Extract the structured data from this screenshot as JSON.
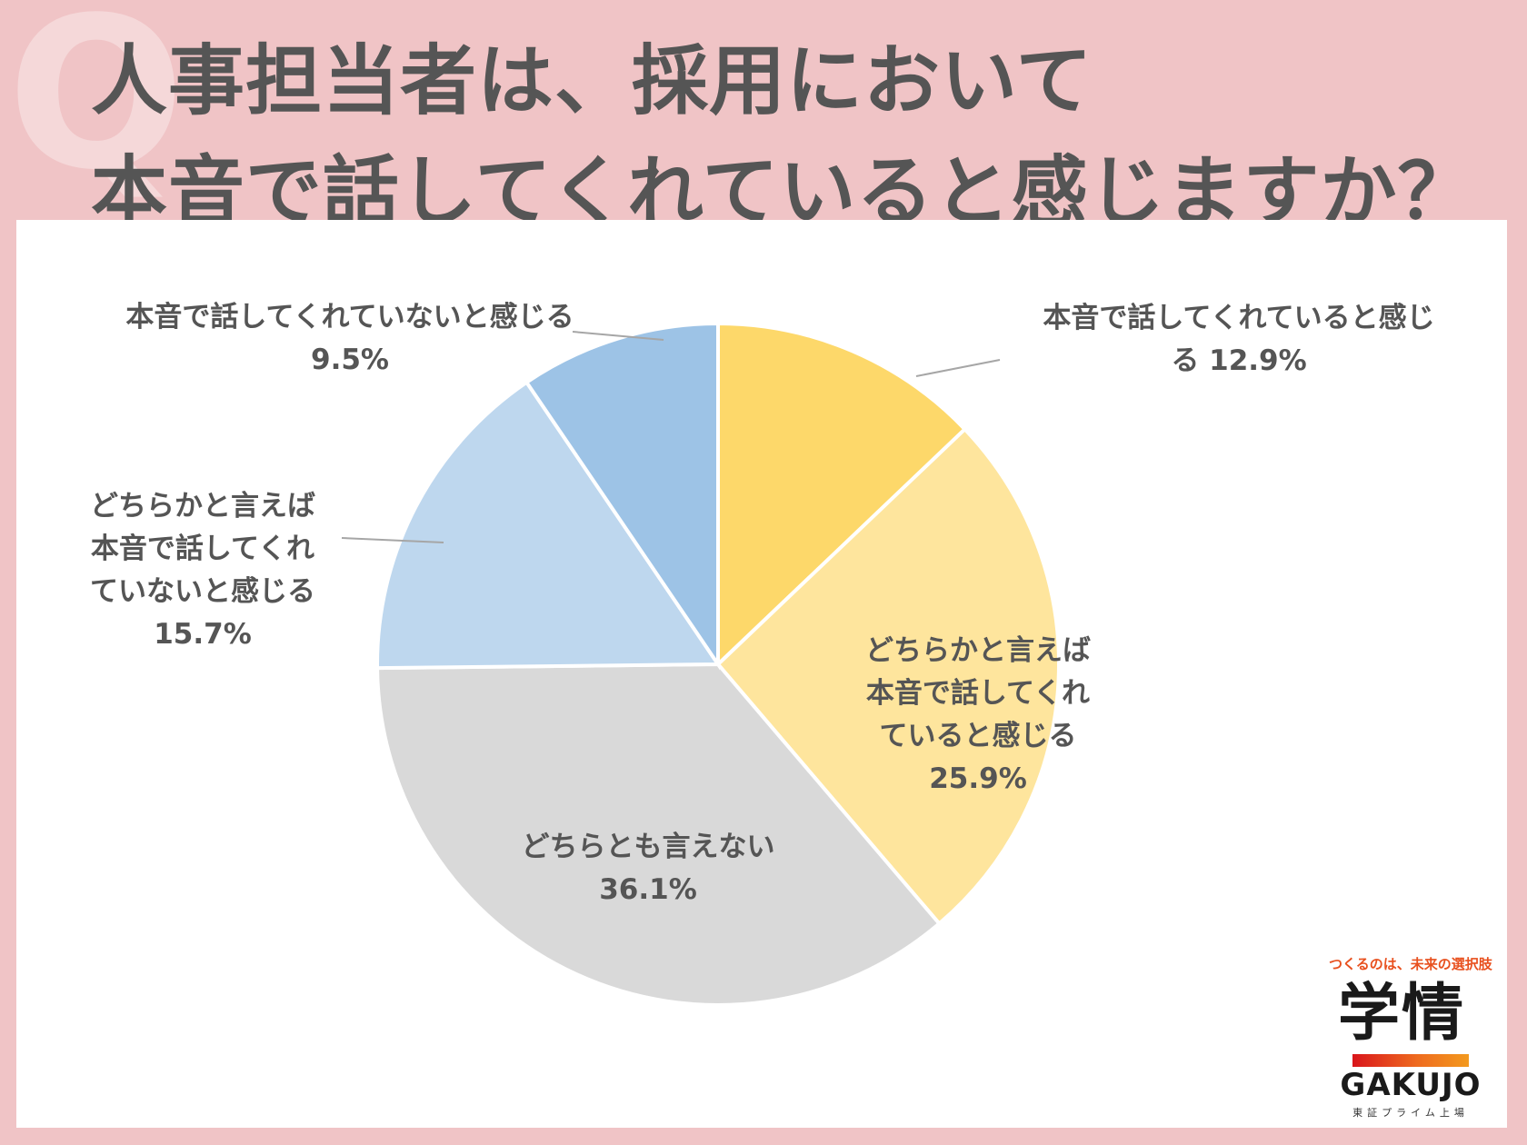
{
  "header": {
    "line1": "人事担当者は、採用において",
    "line2": "本音で話してくれていると感じますか？"
  },
  "chart_data": {
    "type": "pie",
    "start_angle_deg": 0,
    "direction": "clockwise",
    "slices": [
      {
        "label_lines": [
          "本音で話してくれていると感じ",
          "る 12.9%"
        ],
        "value": 12.9,
        "color": "#fdd86a"
      },
      {
        "label_lines": [
          "どちらかと言えば",
          "本音で話してくれ",
          "ていると感じる",
          "25.9%"
        ],
        "value": 25.9,
        "color": "#fee59d"
      },
      {
        "label_lines": [
          "どちらとも言えない",
          "36.1%"
        ],
        "value": 36.1,
        "color": "#d9d9d9"
      },
      {
        "label_lines": [
          "どちらかと言えば",
          "本音で話してくれ",
          "ていないと感じる",
          "15.7%"
        ],
        "value": 15.7,
        "color": "#bed7ee"
      },
      {
        "label_lines": [
          "本音で話してくれていないと感じる",
          "9.5%"
        ],
        "value": 9.5,
        "color": "#9dc3e6"
      }
    ]
  },
  "logo": {
    "tagline": "つくるのは、未来の選択肢",
    "kanji": "学情",
    "name_en": "GAKUJO",
    "listing": "東証プライム上場"
  },
  "watermark": "Q"
}
